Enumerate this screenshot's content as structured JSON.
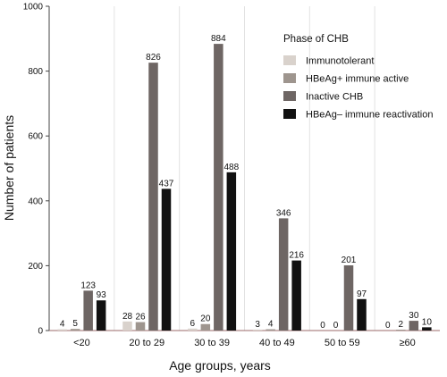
{
  "chart_data": {
    "type": "bar",
    "xlabel": "Age groups, years",
    "ylabel": "Number of patients",
    "ylim": [
      0,
      1000
    ],
    "yticks": [
      0,
      200,
      400,
      600,
      800,
      1000
    ],
    "grid": "vertical separators between groups",
    "categories": [
      "<20",
      "20 to 29",
      "30 to 39",
      "40 to 49",
      "50 to 59",
      "≥60"
    ],
    "legend": {
      "title": "Phase of CHB",
      "placement": "top-right"
    },
    "series": [
      {
        "name": "Immunotolerant",
        "color": "#d9d2cc",
        "values": [
          4,
          28,
          6,
          3,
          0,
          0
        ]
      },
      {
        "name": "HBeAg+ immune active",
        "color": "#9e958e",
        "values": [
          5,
          26,
          20,
          4,
          0,
          2
        ]
      },
      {
        "name": "Inactive  CHB",
        "color": "#6e6664",
        "values": [
          123,
          826,
          884,
          346,
          201,
          30
        ]
      },
      {
        "name": "HBeAg– immune reactivation",
        "color": "#111111",
        "values": [
          93,
          437,
          488,
          216,
          97,
          10
        ]
      }
    ]
  }
}
